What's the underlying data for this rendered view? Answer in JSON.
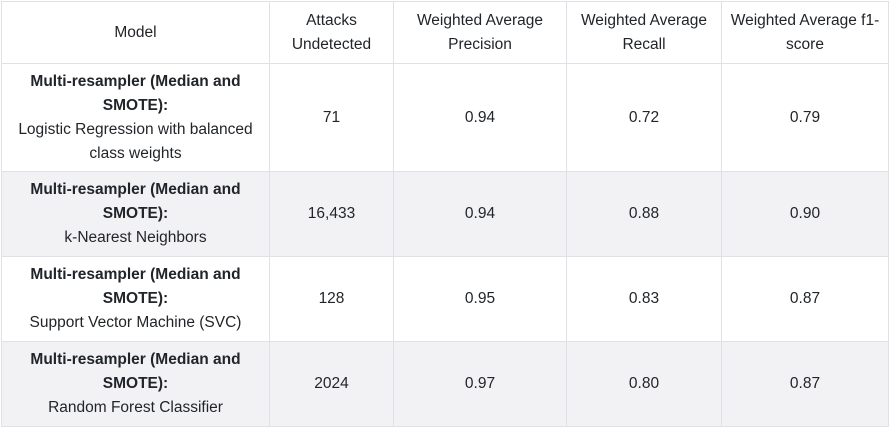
{
  "table": {
    "headers": [
      "Model",
      "Attacks Undetected",
      "Weighted Average Precision",
      "Weighted Average Recall",
      "Weighted Average f1-score"
    ],
    "rows": [
      {
        "resampler": "Multi-resampler (Median and SMOTE):",
        "model": "Logistic Regression with balanced class weights",
        "attacks_undetected": "71",
        "precision": "0.94",
        "recall": "0.72",
        "f1": "0.79"
      },
      {
        "resampler": "Multi-resampler (Median and SMOTE):",
        "model": "k-Nearest Neighbors",
        "attacks_undetected": "16,433",
        "precision": "0.94",
        "recall": "0.88",
        "f1": "0.90"
      },
      {
        "resampler": "Multi-resampler (Median and SMOTE):",
        "model": "Support Vector Machine (SVC)",
        "attacks_undetected": "128",
        "precision": "0.95",
        "recall": "0.83",
        "f1": "0.87"
      },
      {
        "resampler": "Multi-resampler (Median and SMOTE):",
        "model": "Random Forest Classifier",
        "attacks_undetected": "2024",
        "precision": "0.97",
        "recall": "0.80",
        "f1": "0.87"
      }
    ]
  }
}
